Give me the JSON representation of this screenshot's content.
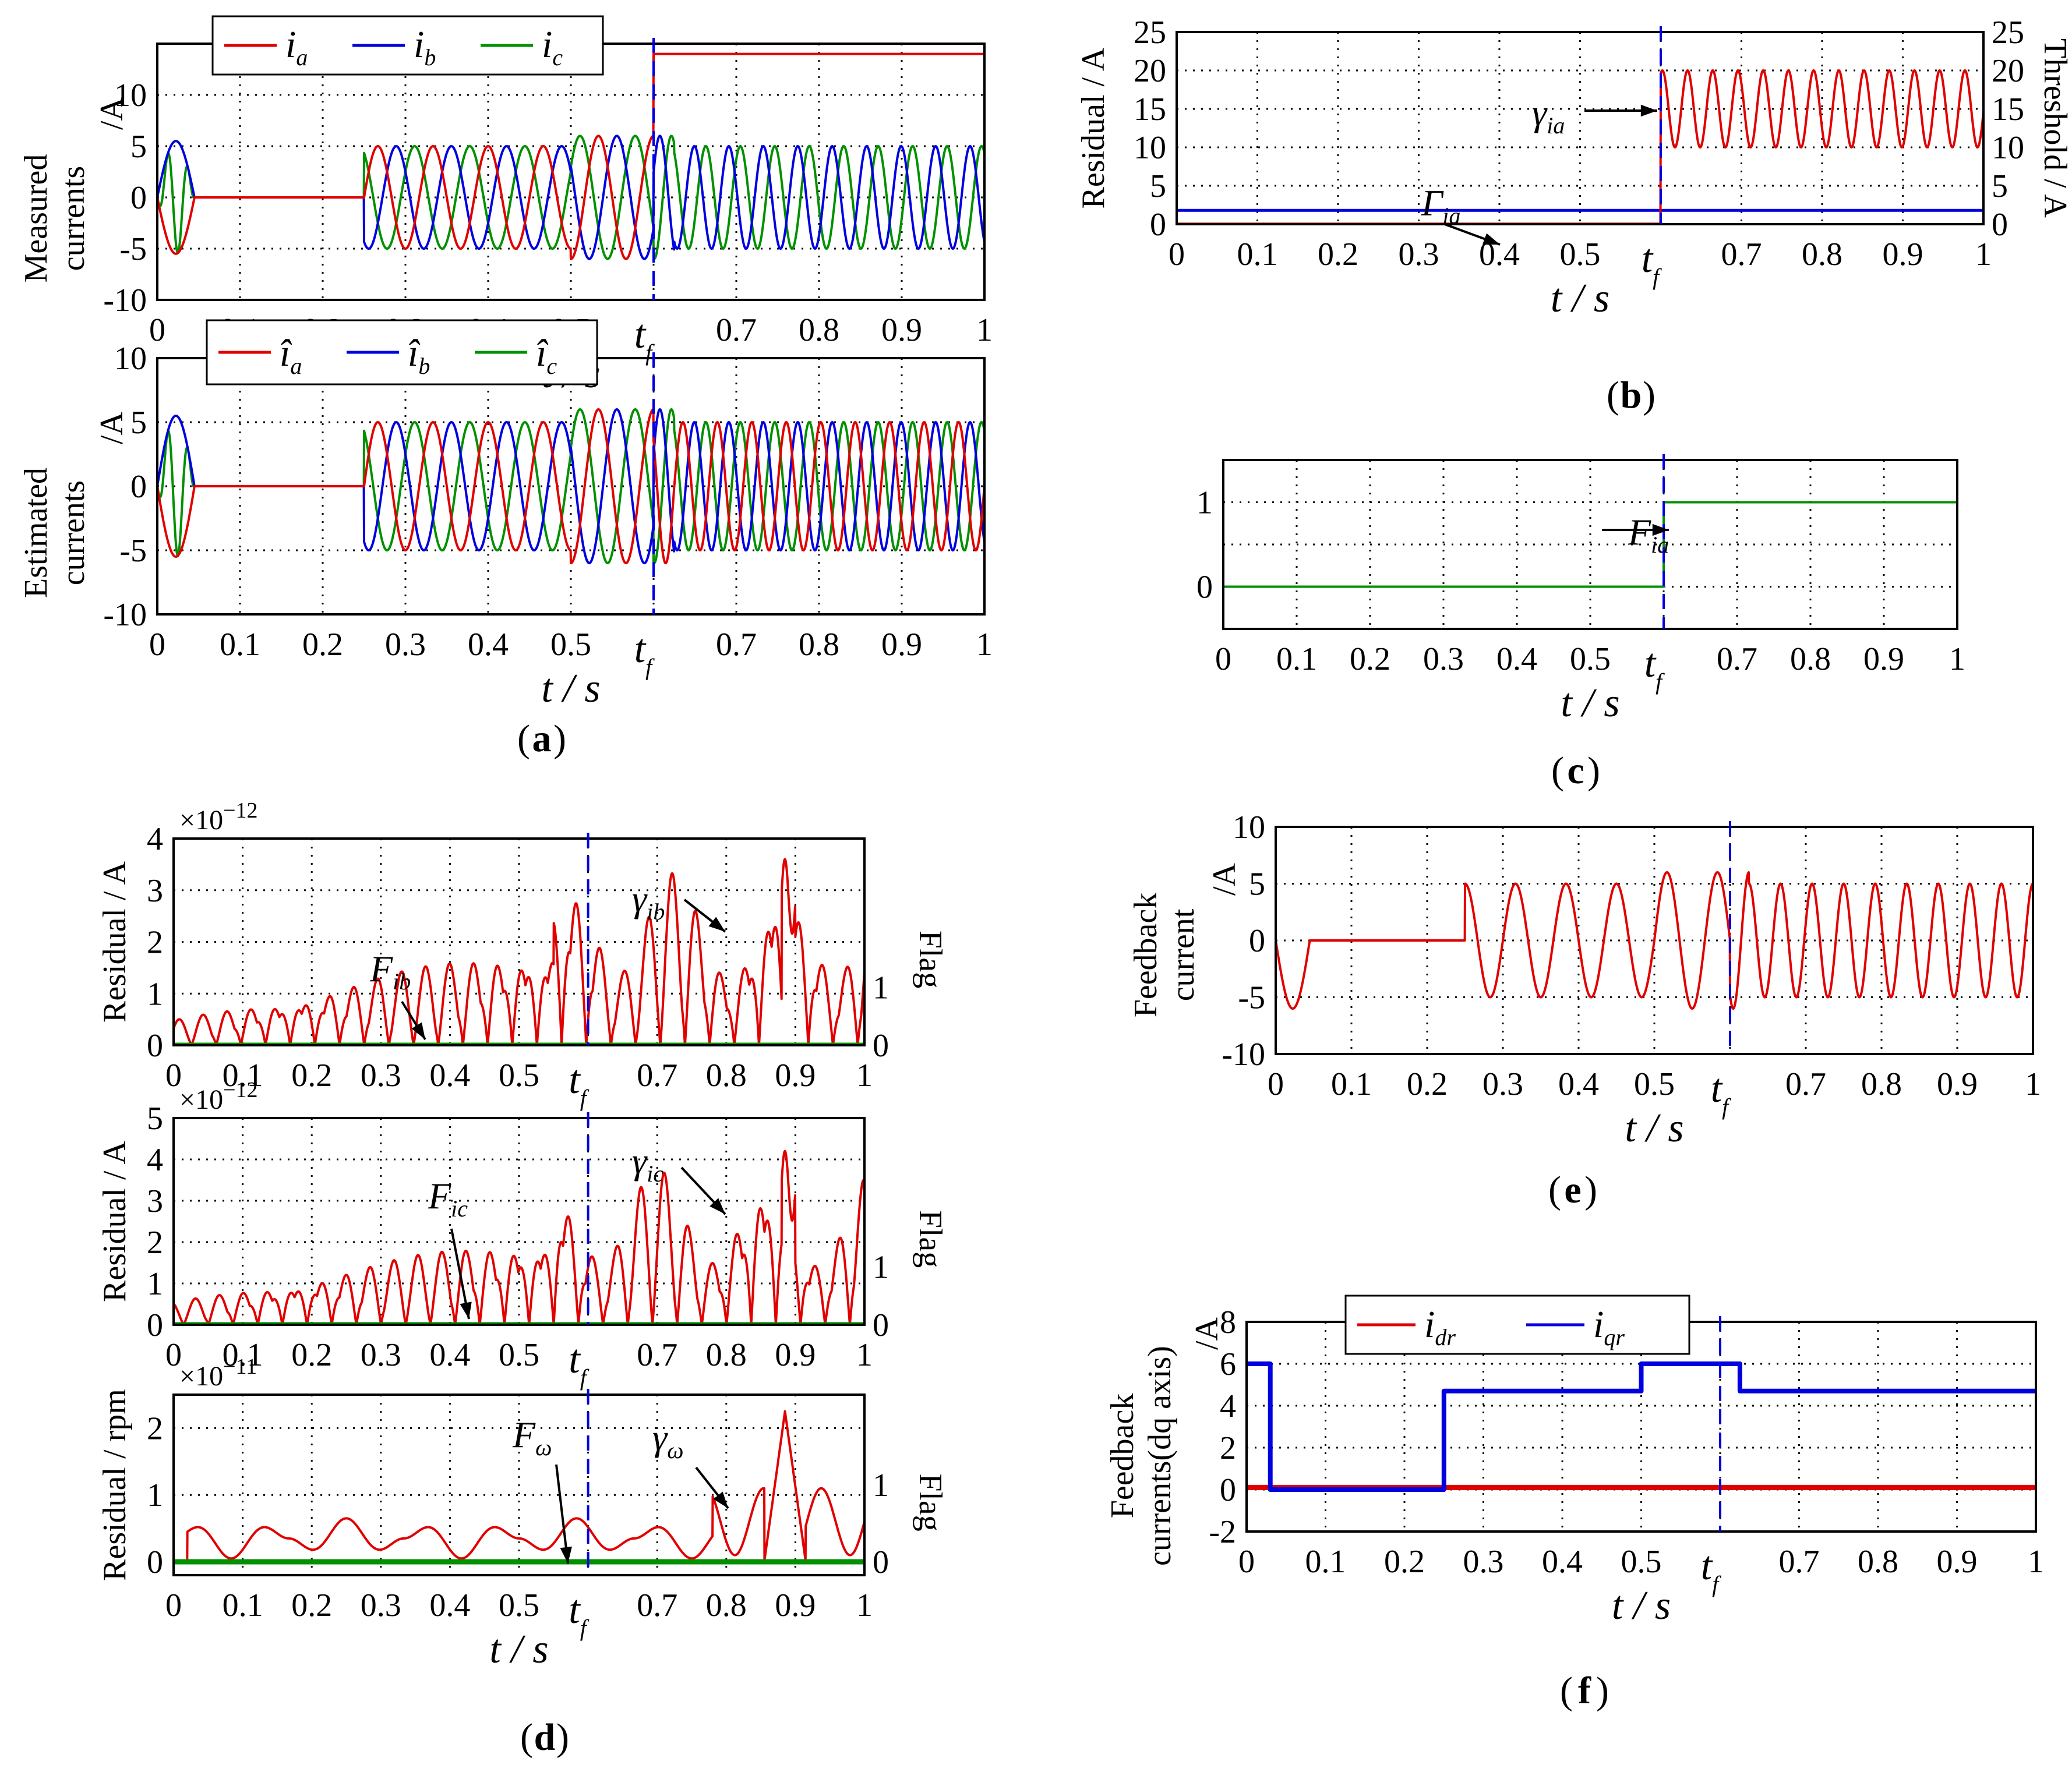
{
  "figure": {
    "captions": {
      "a": "a",
      "b": "b",
      "c": "c",
      "d": "d",
      "e": "e",
      "f": "f"
    }
  },
  "chart_data": [
    {
      "id": "a1",
      "panel": "a",
      "type": "line",
      "ylabel_lines": [
        "Measured",
        "currents"
      ],
      "ylabel_unit": "/A",
      "ylim": [
        -10,
        15
      ],
      "yticks": [
        10,
        5,
        0,
        -5,
        -10
      ],
      "xlim": [
        0,
        1
      ],
      "xticks": [
        "0",
        "0.1",
        "0.2",
        "0.3",
        "0.4",
        "0.5",
        "t",
        "0.7",
        "0.8",
        "0.9",
        "1"
      ],
      "xlabel": "t / s",
      "fault_time_label": "t",
      "fault_time_sub": "f",
      "fault_time": 0.6,
      "legend": [
        {
          "symbol": "i",
          "sub": "a",
          "color": "#e00000"
        },
        {
          "symbol": "i",
          "sub": "b",
          "color": "#0000e0"
        },
        {
          "symbol": "i",
          "sub": "c",
          "color": "#009000"
        }
      ],
      "series": [
        {
          "name": "i_a",
          "color": "#e00000",
          "description": "3-phase sine, 0 during 0.04-0.25 s, amplitude 5 (6 during 0.5-0.625 s); after 0.6 s phase a sensor reads 14 A constant"
        },
        {
          "name": "i_b",
          "color": "#0000e0"
        },
        {
          "name": "i_c",
          "color": "#009000"
        }
      ],
      "amplitude": 5,
      "fault_value": 14
    },
    {
      "id": "a2",
      "panel": "a",
      "type": "line",
      "ylabel_lines": [
        "Estimated",
        "currents"
      ],
      "ylabel_unit": "/A",
      "ylim": [
        -10,
        10
      ],
      "yticks": [
        10,
        5,
        0,
        -5,
        -10
      ],
      "xlim": [
        0,
        1
      ],
      "xticks": [
        "0",
        "0.1",
        "0.2",
        "0.3",
        "0.4",
        "0.5",
        "t",
        "0.7",
        "0.8",
        "0.9",
        "1"
      ],
      "xlabel": "t / s",
      "fault_time_label": "t",
      "fault_time_sub": "f",
      "fault_time": 0.6,
      "legend": [
        {
          "symbol": "î",
          "sub": "a",
          "color": "#e00000"
        },
        {
          "symbol": "î",
          "sub": "b",
          "color": "#0000e0"
        },
        {
          "symbol": "î",
          "sub": "c",
          "color": "#009000"
        }
      ],
      "series": [
        {
          "name": "î_a",
          "color": "#e00000"
        },
        {
          "name": "î_b",
          "color": "#0000e0"
        },
        {
          "name": "î_c",
          "color": "#009000"
        }
      ],
      "amplitude": 5
    },
    {
      "id": "b",
      "panel": "b",
      "type": "line",
      "ylabel_left": "Residual / A",
      "ylabel_right": "Threshold / A",
      "ylim": [
        0,
        25
      ],
      "yticks": [
        25,
        20,
        15,
        10,
        5,
        0
      ],
      "xlim": [
        0,
        1
      ],
      "xticks": [
        "0",
        "0.1",
        "0.2",
        "0.3",
        "0.4",
        "0.5",
        "t",
        "0.7",
        "0.8",
        "0.9",
        "1"
      ],
      "xlabel": "t / s",
      "fault_time_label": "t",
      "fault_time_sub": "f",
      "fault_time": 0.6,
      "annotations": [
        {
          "symbol": "γ",
          "sub": "ia"
        },
        {
          "symbol": "Γ",
          "sub": "ia"
        }
      ],
      "threshold": 1.8,
      "residual_after_fault": {
        "center": 15,
        "amplitude": 5
      },
      "series": [
        {
          "name": "Residual γ_ia",
          "color": "#e00000"
        },
        {
          "name": "Threshold Γ_ia",
          "color": "#0000e0"
        }
      ]
    },
    {
      "id": "c",
      "panel": "c",
      "type": "line",
      "ylim": [
        -0.5,
        1.5
      ],
      "yticks": [
        1,
        0
      ],
      "xlim": [
        0,
        1
      ],
      "xticks": [
        "0",
        "0.1",
        "0.2",
        "0.3",
        "0.4",
        "0.5",
        "t",
        "0.7",
        "0.8",
        "0.9",
        "1"
      ],
      "xlabel": "t / s",
      "fault_time_label": "t",
      "fault_time_sub": "f",
      "fault_time": 0.6,
      "annotations": [
        {
          "symbol": "F",
          "sub": "ia"
        }
      ],
      "series": [
        {
          "name": "Flag F_ia",
          "color": "#009000",
          "values": {
            "before": 0,
            "after": 1
          }
        }
      ]
    },
    {
      "id": "d1",
      "panel": "d",
      "type": "line",
      "ylabel_left": "Residual / A",
      "ylabel_right": "Flag",
      "exponent": "×10",
      "exponent_power": "−12",
      "ylim": [
        0,
        4
      ],
      "yticks": [
        4,
        3,
        2,
        1,
        0
      ],
      "right_ticks": [
        "1",
        "0"
      ],
      "xlim": [
        0,
        1
      ],
      "xticks": [
        "0",
        "0.1",
        "0.2",
        "0.3",
        "0.4",
        "0.5",
        "t",
        "0.7",
        "0.8",
        "0.9",
        "1"
      ],
      "fault_time": 0.6,
      "annotations": [
        {
          "symbol": "F",
          "sub": "ib"
        },
        {
          "symbol": "γ",
          "sub": "ib"
        }
      ],
      "peak": 3.6
    },
    {
      "id": "d2",
      "panel": "d",
      "type": "line",
      "ylabel_left": "Residual / A",
      "ylabel_right": "Flag",
      "exponent": "×10",
      "exponent_power": "−12",
      "ylim": [
        0,
        5
      ],
      "yticks": [
        5,
        4,
        3,
        2,
        1,
        0
      ],
      "right_ticks": [
        "1",
        "0"
      ],
      "xlim": [
        0,
        1
      ],
      "xticks": [
        "0",
        "0.1",
        "0.2",
        "0.3",
        "0.4",
        "0.5",
        "t",
        "0.7",
        "0.8",
        "0.9",
        "1"
      ],
      "fault_time": 0.6,
      "annotations": [
        {
          "symbol": "F",
          "sub": "ic"
        },
        {
          "symbol": "γ",
          "sub": "ic"
        }
      ],
      "peak": 4.2
    },
    {
      "id": "d3",
      "panel": "d",
      "type": "line",
      "ylabel_left": "Residual / rpm",
      "ylabel_right": "Flag",
      "exponent": "×10",
      "exponent_power": "−11",
      "ylim": [
        -0.2,
        2.5
      ],
      "yticks": [
        2,
        1,
        0
      ],
      "right_ticks": [
        "1",
        "0"
      ],
      "xlim": [
        0,
        1
      ],
      "xticks": [
        "0",
        "0.1",
        "0.2",
        "0.3",
        "0.4",
        "0.5",
        "t",
        "0.7",
        "0.8",
        "0.9",
        "1"
      ],
      "xlabel": "t / s",
      "fault_time_label": "t",
      "fault_time_sub": "f",
      "fault_time": 0.6,
      "annotations": [
        {
          "symbol": "F",
          "sub": "ω"
        },
        {
          "symbol": "γ",
          "sub": "ω"
        }
      ],
      "peak": 2.25
    },
    {
      "id": "e",
      "panel": "e",
      "type": "line",
      "ylabel_lines": [
        "Feedback",
        "current"
      ],
      "ylabel_unit": "/A",
      "ylim": [
        -10,
        10
      ],
      "yticks": [
        10,
        5,
        0,
        -5,
        -10
      ],
      "xlim": [
        0,
        1
      ],
      "xticks": [
        "0",
        "0.1",
        "0.2",
        "0.3",
        "0.4",
        "0.5",
        "t",
        "0.7",
        "0.8",
        "0.9",
        "1"
      ],
      "xlabel": "t / s",
      "fault_time_label": "t",
      "fault_time_sub": "f",
      "fault_time": 0.6,
      "series": [
        {
          "name": "Feedback current",
          "color": "#e00000"
        }
      ],
      "amplitude": 5
    },
    {
      "id": "f",
      "panel": "f",
      "type": "line",
      "ylabel_lines": [
        "Feedback",
        "currents(dq axis)"
      ],
      "ylabel_unit": "/A",
      "ylim": [
        -2,
        8
      ],
      "yticks": [
        8,
        6,
        4,
        2,
        0,
        -2
      ],
      "xlim": [
        0,
        1
      ],
      "xticks": [
        "0",
        "0.1",
        "0.2",
        "0.3",
        "0.4",
        "0.5",
        "t",
        "0.7",
        "0.8",
        "0.9",
        "1"
      ],
      "xlabel": "t / s",
      "fault_time_label": "t",
      "fault_time_sub": "f",
      "fault_time": 0.6,
      "legend": [
        {
          "symbol": "i",
          "sub": "dr",
          "color": "#e00000"
        },
        {
          "symbol": "i",
          "sub": "qr",
          "color": "#0000e0"
        }
      ],
      "series": [
        {
          "name": "i_dr",
          "color": "#e00000",
          "value": 0.1
        },
        {
          "name": "i_qr",
          "color": "#0000e0",
          "steps": [
            {
              "t0": 0,
              "t1": 0.03,
              "v": 6
            },
            {
              "t0": 0.03,
              "t1": 0.25,
              "v": 0
            },
            {
              "t0": 0.25,
              "t1": 0.5,
              "v": 4.7
            },
            {
              "t0": 0.5,
              "t1": 0.625,
              "v": 6
            },
            {
              "t0": 0.625,
              "t1": 1,
              "v": 4.7
            }
          ]
        }
      ]
    }
  ]
}
